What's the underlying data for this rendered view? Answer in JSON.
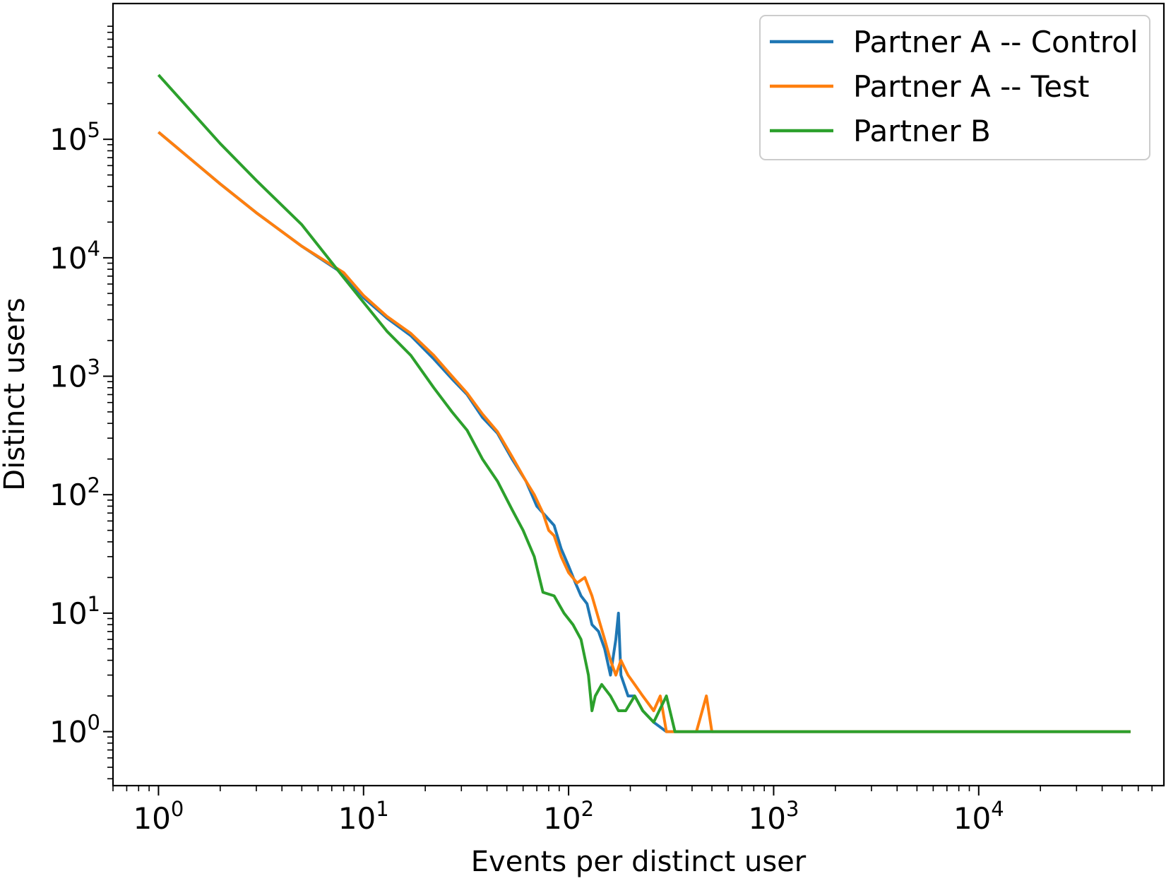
{
  "chart_data": {
    "type": "line",
    "title": "",
    "xlabel": "Events per distinct user",
    "ylabel": "Distinct users",
    "xscale": "log",
    "yscale": "log",
    "xlim": [
      0.6,
      80000
    ],
    "ylim": [
      0.35,
      1400000
    ],
    "grid": false,
    "legend_position": "top-right",
    "x_ticks": [
      {
        "value": 1,
        "base": "10",
        "exp": "0"
      },
      {
        "value": 10,
        "base": "10",
        "exp": "1"
      },
      {
        "value": 100,
        "base": "10",
        "exp": "2"
      },
      {
        "value": 1000,
        "base": "10",
        "exp": "3"
      },
      {
        "value": 10000,
        "base": "10",
        "exp": "4"
      }
    ],
    "y_ticks": [
      {
        "value": 1,
        "base": "10",
        "exp": "0"
      },
      {
        "value": 10,
        "base": "10",
        "exp": "1"
      },
      {
        "value": 100,
        "base": "10",
        "exp": "2"
      },
      {
        "value": 1000,
        "base": "10",
        "exp": "3"
      },
      {
        "value": 10000,
        "base": "10",
        "exp": "4"
      },
      {
        "value": 100000,
        "base": "10",
        "exp": "5"
      }
    ],
    "series": [
      {
        "name": "Partner A -- Control",
        "color": "#1f77b4",
        "x": [
          1,
          2,
          3,
          5,
          8,
          10,
          13,
          17,
          22,
          27,
          32,
          38,
          45,
          53,
          62,
          70,
          78,
          85,
          92,
          100,
          108,
          115,
          123,
          130,
          140,
          150,
          160,
          170,
          175,
          180,
          195,
          210,
          230,
          260,
          300,
          400,
          500,
          700,
          1000,
          3000,
          10000,
          30000,
          55000
        ],
        "y": [
          115000,
          42000,
          24000,
          12500,
          7300,
          4600,
          3100,
          2200,
          1400,
          950,
          700,
          450,
          330,
          200,
          130,
          80,
          65,
          55,
          35,
          25,
          18,
          14,
          12,
          8,
          7,
          5,
          3,
          6,
          10,
          3,
          2,
          2,
          1.5,
          1.2,
          1,
          1,
          1,
          1,
          1,
          1,
          1,
          1,
          1
        ]
      },
      {
        "name": "Partner A -- Test",
        "color": "#ff7f0e",
        "x": [
          1,
          2,
          3,
          5,
          8,
          10,
          13,
          17,
          22,
          27,
          32,
          38,
          45,
          53,
          62,
          68,
          75,
          80,
          85,
          92,
          100,
          110,
          120,
          130,
          140,
          150,
          160,
          170,
          180,
          195,
          210,
          230,
          260,
          280,
          300,
          350,
          420,
          470,
          500,
          700,
          1000,
          3000,
          10000,
          30000,
          55000
        ],
        "y": [
          115000,
          42000,
          24000,
          12500,
          7500,
          4800,
          3200,
          2300,
          1500,
          1000,
          720,
          480,
          340,
          210,
          130,
          100,
          70,
          50,
          45,
          30,
          22,
          18,
          20,
          14,
          9,
          6,
          4,
          3,
          4,
          3,
          2.5,
          2,
          1.5,
          2,
          1,
          1,
          1,
          2,
          1,
          1,
          1,
          1,
          1,
          1,
          1
        ]
      },
      {
        "name": "Partner B",
        "color": "#2ca02c",
        "x": [
          1,
          2,
          3,
          5,
          8,
          10,
          13,
          17,
          22,
          27,
          32,
          38,
          45,
          53,
          60,
          68,
          75,
          85,
          95,
          105,
          115,
          125,
          130,
          135,
          145,
          160,
          175,
          190,
          210,
          230,
          260,
          300,
          330,
          400,
          600,
          1000,
          3000,
          10000,
          30000,
          55000
        ],
        "y": [
          350000,
          92000,
          45000,
          19000,
          6800,
          4200,
          2400,
          1500,
          800,
          500,
          350,
          200,
          130,
          75,
          50,
          30,
          15,
          14,
          10,
          8,
          6,
          3,
          1.5,
          2,
          2.5,
          2,
          1.5,
          1.5,
          2,
          1.5,
          1.2,
          2,
          1,
          1,
          1,
          1,
          1,
          1,
          1,
          1
        ]
      }
    ]
  }
}
